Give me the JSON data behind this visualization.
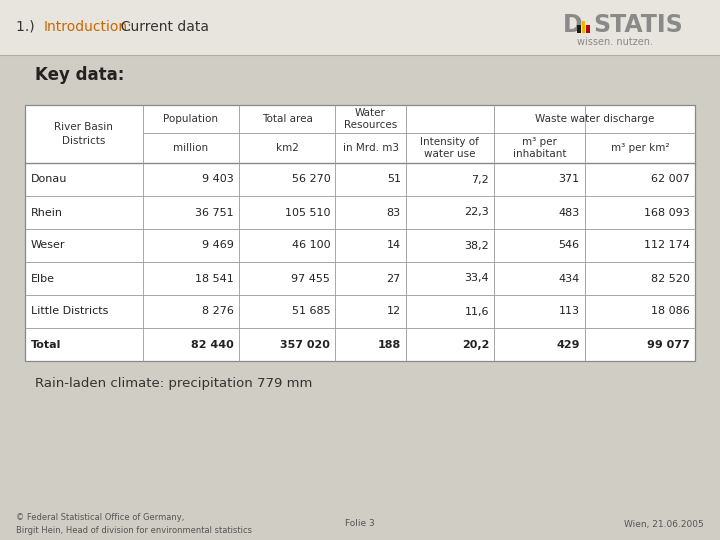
{
  "bg_color": "#d0cdc5",
  "top_bar_color": "#e8e5de",
  "slide_title_prefix": "1.)  ",
  "slide_title_highlight": "Introduction:",
  "slide_title_highlight_color": "#cc6600",
  "slide_title_suffix": "  Current data",
  "slide_title_color": "#333333",
  "section_title": "Key data:",
  "rain_text": "Rain-laden climate: precipitation 779 mm",
  "footer_left": "© Federal Statistical Office of Germany,\nBirgit Hein, Head of division for environmental statistics",
  "footer_center": "Folie 3",
  "footer_right": "Wien, 21.06.2005",
  "table": {
    "row_header": "River Basin\nDistricts",
    "rows": [
      [
        "Donau",
        "9 403",
        "56 270",
        "51",
        "7,2",
        "371",
        "62 007"
      ],
      [
        "Rhein",
        "36 751",
        "105 510",
        "83",
        "22,3",
        "483",
        "168 093"
      ],
      [
        "Weser",
        "9 469",
        "46 100",
        "14",
        "38,2",
        "546",
        "112 174"
      ],
      [
        "Elbe",
        "18 541",
        "97 455",
        "27",
        "33,4",
        "434",
        "82 520"
      ],
      [
        "Little Districts",
        "8 276",
        "51 685",
        "12",
        "11,6",
        "113",
        "18 086"
      ],
      [
        "Total",
        "82 440",
        "357 020",
        "188",
        "20,2",
        "429",
        "99 077"
      ]
    ]
  }
}
